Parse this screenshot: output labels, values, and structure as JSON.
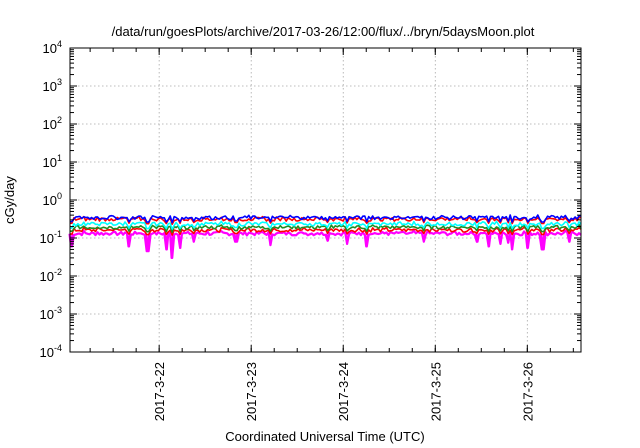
{
  "chart_data": {
    "type": "line",
    "title": "/data/run/goesPlots/archive/2017-03-26/12:00/flux/../bryn/5daysMoon.plot",
    "xlabel": "Coordinated Universal Time (UTC)",
    "ylabel": "cGy/day",
    "yscale": "log",
    "ylim": [
      0.0001,
      10000
    ],
    "xlim": [
      "2017-03-21 00:45",
      "2017-03-26 14:00"
    ],
    "grid": true,
    "x_ticks": [
      {
        "label": "2017-3-22",
        "date": "2017-03-22 00:00"
      },
      {
        "label": "2017-3-23",
        "date": "2017-03-23 00:00"
      },
      {
        "label": "2017-3-24",
        "date": "2017-03-24 00:00"
      },
      {
        "label": "2017-3-25",
        "date": "2017-03-25 00:00"
      },
      {
        "label": "2017-3-26",
        "date": "2017-03-26 00:00"
      }
    ],
    "y_ticks": [
      {
        "value": 0.0001,
        "base": "10",
        "exp": "-4"
      },
      {
        "value": 0.001,
        "base": "10",
        "exp": "-3"
      },
      {
        "value": 0.01,
        "base": "10",
        "exp": "-2"
      },
      {
        "value": 0.1,
        "base": "10",
        "exp": "-1"
      },
      {
        "value": 1,
        "base": "10",
        "exp": "0"
      },
      {
        "value": 10,
        "base": "10",
        "exp": "1"
      },
      {
        "value": 100,
        "base": "10",
        "exp": "2"
      },
      {
        "value": 1000,
        "base": "10",
        "exp": "3"
      },
      {
        "value": 10000,
        "base": "10",
        "exp": "4"
      }
    ],
    "series": [
      {
        "color": "#ff00ff",
        "baseline": 0.13,
        "dips": [
          {
            "date": "2017-03-21 01:00",
            "value": 0.06
          },
          {
            "date": "2017-03-21 16:00",
            "value": 0.06
          },
          {
            "date": "2017-03-21 21:00",
            "value": 0.045
          },
          {
            "date": "2017-03-22 02:00",
            "value": 0.05
          },
          {
            "date": "2017-03-22 03:15",
            "value": 0.03
          },
          {
            "date": "2017-03-22 05:30",
            "value": 0.055
          },
          {
            "date": "2017-03-22 09:00",
            "value": 0.08
          },
          {
            "date": "2017-03-22 20:00",
            "value": 0.08
          },
          {
            "date": "2017-03-23 05:00",
            "value": 0.065
          },
          {
            "date": "2017-03-23 20:00",
            "value": 0.085
          },
          {
            "date": "2017-03-24 01:00",
            "value": 0.07
          },
          {
            "date": "2017-03-24 06:00",
            "value": 0.06
          },
          {
            "date": "2017-03-24 21:00",
            "value": 0.08
          },
          {
            "date": "2017-03-25 11:00",
            "value": 0.08
          },
          {
            "date": "2017-03-25 14:00",
            "value": 0.06
          },
          {
            "date": "2017-03-25 17:00",
            "value": 0.07
          },
          {
            "date": "2017-03-25 19:00",
            "value": 0.075
          },
          {
            "date": "2017-03-25 20:00",
            "value": 0.05
          },
          {
            "date": "2017-03-26 00:00",
            "value": 0.055
          },
          {
            "date": "2017-03-26 04:00",
            "value": 0.05
          },
          {
            "date": "2017-03-26 11:00",
            "value": 0.08
          }
        ]
      },
      {
        "color": "#ff0000",
        "baseline": 0.16
      },
      {
        "color": "#228b22",
        "baseline": 0.19
      },
      {
        "color": "#00ffff",
        "baseline": 0.23
      },
      {
        "color": "#ff0000",
        "baseline": 0.31
      },
      {
        "color": "#0000ff",
        "baseline": 0.34
      }
    ]
  }
}
